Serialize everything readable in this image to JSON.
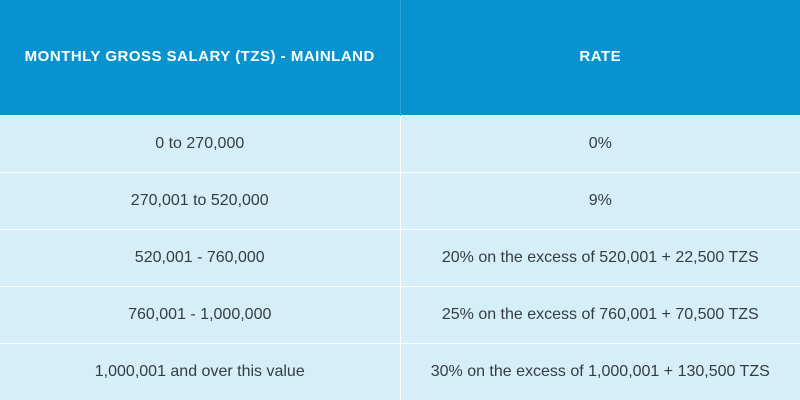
{
  "table": {
    "headers": [
      "MONTHLY GROSS SALARY (TZS) - MAINLAND",
      "RATE"
    ],
    "rows": [
      [
        "0 to 270,000",
        "0%"
      ],
      [
        "270,001 to 520,000",
        "9%"
      ],
      [
        "520,001 - 760,000",
        "20% on the excess of 520,001 + 22,500 TZS"
      ],
      [
        "760,001 - 1,000,000",
        "25% on the excess of 760,001 + 70,500 TZS"
      ],
      [
        "1,000,001 and over this value",
        "30% on the excess of 1,000,001 + 130,500 TZS"
      ]
    ]
  },
  "colors": {
    "header_background": "#0793cf",
    "header_text": "#ffffff",
    "row_background": "#d6eef8",
    "row_text": "#333d44",
    "divider": "#ffffff"
  }
}
